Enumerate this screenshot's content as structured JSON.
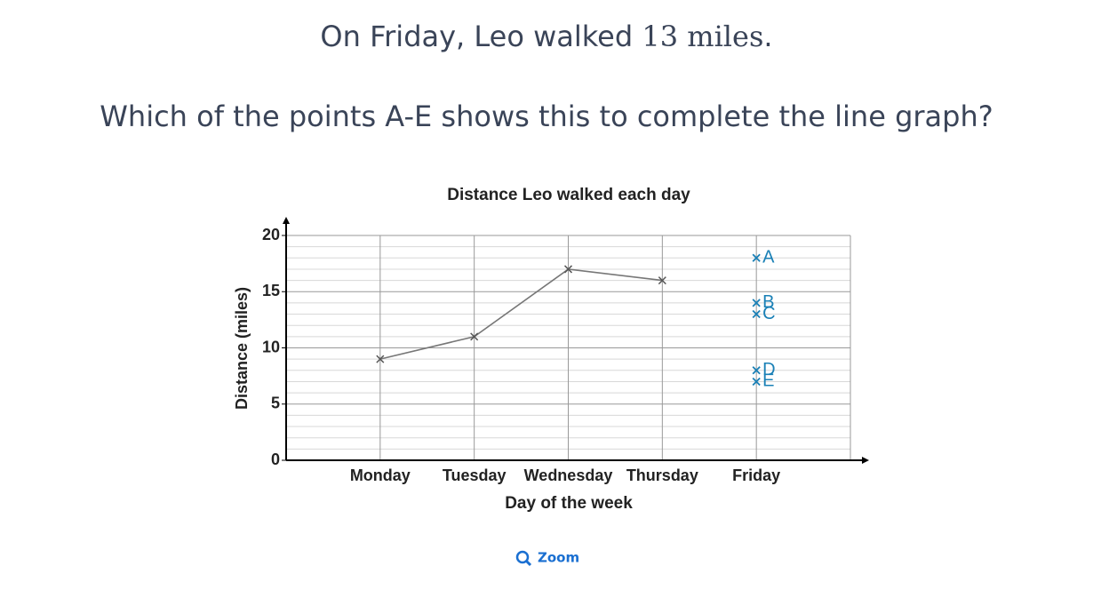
{
  "prompt": {
    "before": "On Friday, Leo walked ",
    "math": "13 miles",
    "after": "."
  },
  "question": "Which of the points A-E shows this to complete the line graph?",
  "chart_data": {
    "type": "line",
    "title": "Distance Leo walked each day",
    "x_label": "Day of the week",
    "y_label": "Distance (miles)",
    "categories": [
      "Monday",
      "Tuesday",
      "Wednesday",
      "Thursday",
      "Friday"
    ],
    "series": [
      {
        "name": "Distance",
        "color": "#777777",
        "values": [
          9,
          11,
          17,
          16,
          null
        ]
      }
    ],
    "options": [
      {
        "label": "A",
        "value": 18
      },
      {
        "label": "B",
        "value": 14
      },
      {
        "label": "C",
        "value": 13
      },
      {
        "label": "D",
        "value": 8
      },
      {
        "label": "E",
        "value": 7
      }
    ],
    "option_color": "#1a80b6",
    "ylim": [
      0,
      20
    ],
    "yticks": [
      0,
      5,
      10,
      15,
      20
    ],
    "minor_yticks": [
      1,
      2,
      3,
      4,
      6,
      7,
      8,
      9,
      11,
      12,
      13,
      14,
      16,
      17,
      18,
      19
    ],
    "grid": true
  },
  "zoom": "Zoom"
}
